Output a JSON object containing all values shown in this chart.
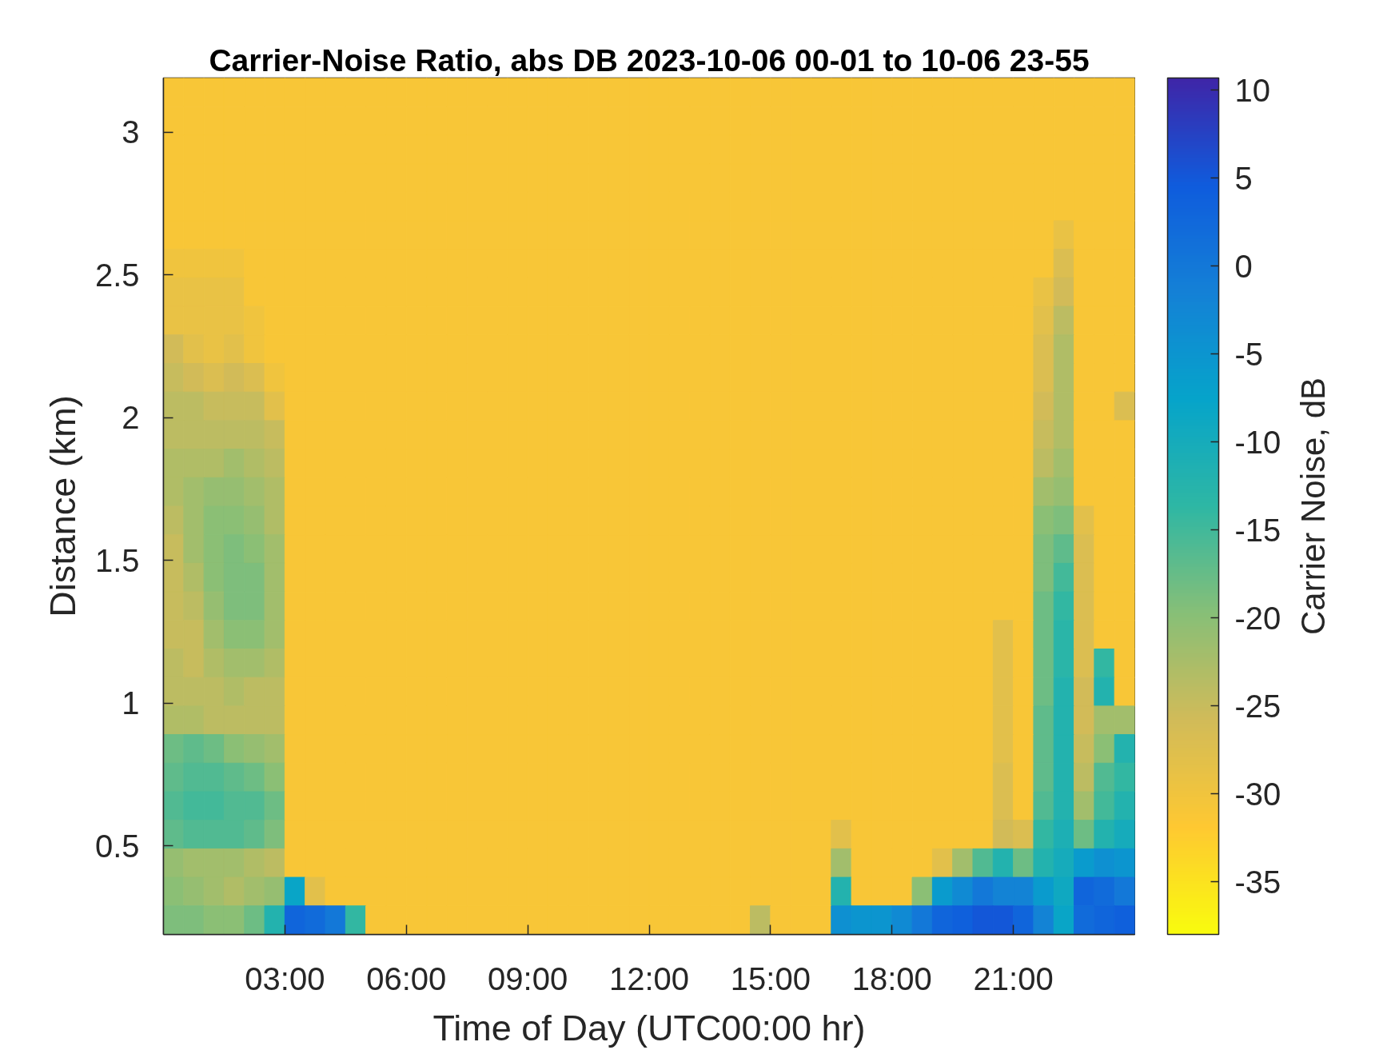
{
  "chart_data": {
    "type": "heatmap",
    "title": "Carrier-Noise Ratio, abs DB 2023-10-06 00-01 to 10-06 23-55",
    "xlabel": "Time of Day (UTC00:00 hr)",
    "ylabel": "Distance (km)",
    "clabel": "Carrier Noise, dB",
    "x": [
      0.25,
      0.75,
      1.25,
      1.75,
      2.25,
      2.75,
      3.25,
      3.75,
      4.25,
      4.75,
      5.25,
      5.75,
      6.25,
      6.75,
      7.25,
      7.75,
      8.25,
      8.75,
      9.25,
      9.75,
      10.25,
      10.75,
      11.25,
      11.75,
      12.25,
      12.75,
      13.25,
      13.75,
      14.25,
      14.75,
      15.25,
      15.75,
      16.25,
      16.75,
      17.25,
      17.75,
      18.25,
      18.75,
      19.25,
      19.75,
      20.25,
      20.75,
      21.25,
      21.75,
      22.25,
      22.75,
      23.25,
      23.75
    ],
    "xlim": [
      0,
      24
    ],
    "xticks": [
      {
        "value": 3,
        "label": "03:00"
      },
      {
        "value": 6,
        "label": "06:00"
      },
      {
        "value": 9,
        "label": "09:00"
      },
      {
        "value": 12,
        "label": "12:00"
      },
      {
        "value": 15,
        "label": "15:00"
      },
      {
        "value": 18,
        "label": "18:00"
      },
      {
        "value": 21,
        "label": "21:00"
      }
    ],
    "ylim": [
      0.19,
      3.19
    ],
    "yticks": [
      0.5,
      1,
      1.5,
      2,
      2.5,
      3
    ],
    "clim": [
      -38,
      10.7
    ],
    "cticks": [
      -35,
      -30,
      -25,
      -20,
      -15,
      -10,
      -5,
      0,
      5,
      10
    ],
    "cells": [
      [
        -31,
        -31,
        -31,
        -31,
        -31,
        -31,
        -31,
        -31,
        -31,
        -31,
        -31,
        -31,
        -31,
        -31,
        -31,
        -31,
        -31,
        -31,
        -31,
        -31,
        -31,
        -31,
        -31,
        -31,
        -31,
        -31,
        -31,
        -31,
        -31,
        -31,
        -31,
        -31,
        -31,
        -31,
        -31,
        -31,
        -31,
        -31,
        -31,
        -31,
        -31,
        -31,
        -31,
        -31,
        -31,
        -31,
        -31,
        -31
      ],
      [
        -31,
        -31,
        -31,
        -31,
        -31,
        -31,
        -31,
        -31,
        -31,
        -31,
        -31,
        -31,
        -31,
        -31,
        -31,
        -31,
        -31,
        -31,
        -31,
        -31,
        -31,
        -31,
        -31,
        -31,
        -31,
        -31,
        -31,
        -31,
        -31,
        -31,
        -31,
        -31,
        -31,
        -31,
        -31,
        -31,
        -31,
        -31,
        -31,
        -31,
        -31,
        -31,
        -31,
        -31,
        -31,
        -31,
        -31,
        -31
      ],
      [
        -31,
        -31,
        -31,
        -31,
        -31,
        -31,
        -31,
        -31,
        -31,
        -31,
        -31,
        -31,
        -31,
        -31,
        -31,
        -31,
        -31,
        -31,
        -31,
        -31,
        -31,
        -31,
        -31,
        -31,
        -31,
        -31,
        -31,
        -31,
        -31,
        -31,
        -31,
        -31,
        -31,
        -31,
        -31,
        -31,
        -31,
        -31,
        -31,
        -31,
        -31,
        -31,
        -31,
        -31,
        -31,
        -31,
        -31,
        -31
      ],
      [
        -31,
        -31,
        -31,
        -31,
        -31,
        -31,
        -31,
        -31,
        -31,
        -31,
        -31,
        -31,
        -31,
        -31,
        -31,
        -31,
        -31,
        -31,
        -31,
        -31,
        -31,
        -31,
        -31,
        -31,
        -31,
        -31,
        -31,
        -31,
        -31,
        -31,
        -31,
        -31,
        -31,
        -31,
        -31,
        -31,
        -31,
        -31,
        -31,
        -31,
        -31,
        -31,
        -31,
        -31,
        -31,
        -31,
        -31,
        -31
      ],
      [
        -31,
        -31,
        -31,
        -31,
        -31,
        -31,
        -31,
        -31,
        -31,
        -31,
        -31,
        -31,
        -31,
        -31,
        -31,
        -31,
        -31,
        -31,
        -31,
        -31,
        -31,
        -31,
        -31,
        -31,
        -31,
        -31,
        -31,
        -31,
        -31,
        -31,
        -31,
        -31,
        -31,
        -31,
        -31,
        -31,
        -31,
        -31,
        -31,
        -31,
        -31,
        -31,
        -31,
        -31,
        -31,
        -31,
        -31,
        -31
      ],
      [
        -31,
        -31,
        -31,
        -31,
        -31,
        -31,
        -31,
        -31,
        -31,
        -31,
        -31,
        -31,
        -31,
        -31,
        -31,
        -31,
        -31,
        -31,
        -31,
        -31,
        -31,
        -31,
        -31,
        -31,
        -31,
        -31,
        -31,
        -31,
        -31,
        -31,
        -31,
        -31,
        -31,
        -31,
        -31,
        -31,
        -31,
        -31,
        -31,
        -31,
        -31,
        -31,
        -31,
        -31,
        -29,
        -31,
        -31,
        -31
      ],
      [
        -30,
        -30,
        -30,
        -30,
        -31,
        -31,
        -31,
        -31,
        -31,
        -31,
        -31,
        -31,
        -31,
        -31,
        -31,
        -31,
        -31,
        -31,
        -31,
        -31,
        -31,
        -31,
        -31,
        -31,
        -31,
        -31,
        -31,
        -31,
        -31,
        -31,
        -31,
        -31,
        -31,
        -31,
        -31,
        -31,
        -31,
        -31,
        -31,
        -31,
        -31,
        -31,
        -31,
        -31,
        -27,
        -31,
        -31,
        -31
      ],
      [
        -29,
        -29,
        -29,
        -29,
        -31,
        -31,
        -31,
        -31,
        -31,
        -31,
        -31,
        -31,
        -31,
        -31,
        -31,
        -31,
        -31,
        -31,
        -31,
        -31,
        -31,
        -31,
        -31,
        -31,
        -31,
        -31,
        -31,
        -31,
        -31,
        -31,
        -31,
        -31,
        -31,
        -31,
        -31,
        -31,
        -31,
        -31,
        -31,
        -31,
        -31,
        -31,
        -31,
        -29,
        -26,
        -31,
        -31,
        -31
      ],
      [
        -29,
        -29,
        -29,
        -29,
        -30,
        -31,
        -31,
        -31,
        -31,
        -31,
        -31,
        -31,
        -31,
        -31,
        -31,
        -31,
        -31,
        -31,
        -31,
        -31,
        -31,
        -31,
        -31,
        -31,
        -31,
        -31,
        -31,
        -31,
        -31,
        -31,
        -31,
        -31,
        -31,
        -31,
        -31,
        -31,
        -31,
        -31,
        -31,
        -31,
        -31,
        -31,
        -31,
        -28,
        -24,
        -31,
        -31,
        -31
      ],
      [
        -26,
        -28,
        -29,
        -28,
        -30,
        -31,
        -31,
        -31,
        -31,
        -31,
        -31,
        -31,
        -31,
        -31,
        -31,
        -31,
        -31,
        -31,
        -31,
        -31,
        -31,
        -31,
        -31,
        -31,
        -31,
        -31,
        -31,
        -31,
        -31,
        -31,
        -31,
        -31,
        -31,
        -31,
        -31,
        -31,
        -31,
        -31,
        -31,
        -31,
        -31,
        -31,
        -31,
        -27,
        -23,
        -31,
        -31,
        -31
      ],
      [
        -25,
        -26,
        -27,
        -26,
        -27,
        -30,
        -31,
        -31,
        -31,
        -31,
        -31,
        -31,
        -31,
        -31,
        -31,
        -31,
        -31,
        -31,
        -31,
        -31,
        -31,
        -31,
        -31,
        -31,
        -31,
        -31,
        -31,
        -31,
        -31,
        -31,
        -31,
        -31,
        -31,
        -31,
        -31,
        -31,
        -31,
        -31,
        -31,
        -31,
        -31,
        -31,
        -31,
        -27,
        -23,
        -31,
        -31,
        -31
      ],
      [
        -24,
        -24,
        -25,
        -25,
        -25,
        -28,
        -31,
        -31,
        -31,
        -31,
        -31,
        -31,
        -31,
        -31,
        -31,
        -31,
        -31,
        -31,
        -31,
        -31,
        -31,
        -31,
        -31,
        -31,
        -31,
        -31,
        -31,
        -31,
        -31,
        -31,
        -31,
        -31,
        -31,
        -31,
        -31,
        -31,
        -31,
        -31,
        -31,
        -31,
        -31,
        -31,
        -31,
        -26,
        -23,
        -31,
        -31,
        -27
      ],
      [
        -24,
        -24,
        -24,
        -24,
        -24,
        -25,
        -31,
        -31,
        -31,
        -31,
        -31,
        -31,
        -31,
        -31,
        -31,
        -31,
        -31,
        -31,
        -31,
        -31,
        -31,
        -31,
        -31,
        -31,
        -31,
        -31,
        -31,
        -31,
        -31,
        -31,
        -31,
        -31,
        -31,
        -31,
        -31,
        -31,
        -31,
        -31,
        -31,
        -31,
        -31,
        -31,
        -31,
        -25,
        -23,
        -31,
        -31,
        -31
      ],
      [
        -23,
        -23,
        -23,
        -22,
        -23,
        -24,
        -31,
        -31,
        -31,
        -31,
        -31,
        -31,
        -31,
        -31,
        -31,
        -31,
        -31,
        -31,
        -31,
        -31,
        -31,
        -31,
        -31,
        -31,
        -31,
        -31,
        -31,
        -31,
        -31,
        -31,
        -31,
        -31,
        -31,
        -31,
        -31,
        -31,
        -31,
        -31,
        -31,
        -31,
        -31,
        -31,
        -31,
        -24,
        -22,
        -31,
        -31,
        -31
      ],
      [
        -23,
        -22,
        -21,
        -21,
        -22,
        -23,
        -31,
        -31,
        -31,
        -31,
        -31,
        -31,
        -31,
        -31,
        -31,
        -31,
        -31,
        -31,
        -31,
        -31,
        -31,
        -31,
        -31,
        -31,
        -31,
        -31,
        -31,
        -31,
        -31,
        -31,
        -31,
        -31,
        -31,
        -31,
        -31,
        -31,
        -31,
        -31,
        -31,
        -31,
        -31,
        -31,
        -31,
        -22,
        -21,
        -31,
        -31,
        -31
      ],
      [
        -24,
        -22,
        -20,
        -20,
        -21,
        -23,
        -31,
        -31,
        -31,
        -31,
        -31,
        -31,
        -31,
        -31,
        -31,
        -31,
        -31,
        -31,
        -31,
        -31,
        -31,
        -31,
        -31,
        -31,
        -31,
        -31,
        -31,
        -31,
        -31,
        -31,
        -31,
        -31,
        -31,
        -31,
        -31,
        -31,
        -31,
        -31,
        -31,
        -31,
        -31,
        -31,
        -31,
        -20,
        -19,
        -28,
        -31,
        -31
      ],
      [
        -25,
        -22,
        -20,
        -19,
        -20,
        -22,
        -31,
        -31,
        -31,
        -31,
        -31,
        -31,
        -31,
        -31,
        -31,
        -31,
        -31,
        -31,
        -31,
        -31,
        -31,
        -31,
        -31,
        -31,
        -31,
        -31,
        -31,
        -31,
        -31,
        -31,
        -31,
        -31,
        -31,
        -31,
        -31,
        -31,
        -31,
        -31,
        -31,
        -31,
        -31,
        -31,
        -31,
        -19,
        -17,
        -27,
        -31,
        -31
      ],
      [
        -25,
        -23,
        -20,
        -19,
        -19,
        -22,
        -31,
        -31,
        -31,
        -31,
        -31,
        -31,
        -31,
        -31,
        -31,
        -31,
        -31,
        -31,
        -31,
        -31,
        -31,
        -31,
        -31,
        -31,
        -31,
        -31,
        -31,
        -31,
        -31,
        -31,
        -31,
        -31,
        -31,
        -31,
        -31,
        -31,
        -31,
        -31,
        -31,
        -31,
        -31,
        -31,
        -31,
        -19,
        -15,
        -27,
        -31,
        -31
      ],
      [
        -25,
        -24,
        -21,
        -19,
        -19,
        -22,
        -31,
        -31,
        -31,
        -31,
        -31,
        -31,
        -31,
        -31,
        -31,
        -31,
        -31,
        -31,
        -31,
        -31,
        -31,
        -31,
        -31,
        -31,
        -31,
        -31,
        -31,
        -31,
        -31,
        -31,
        -31,
        -31,
        -31,
        -31,
        -31,
        -31,
        -31,
        -31,
        -31,
        -31,
        -31,
        -31,
        -31,
        -18,
        -14,
        -27,
        -31,
        -31
      ],
      [
        -25,
        -25,
        -22,
        -20,
        -20,
        -22,
        -31,
        -31,
        -31,
        -31,
        -31,
        -31,
        -31,
        -31,
        -31,
        -31,
        -31,
        -31,
        -31,
        -31,
        -31,
        -31,
        -31,
        -31,
        -31,
        -31,
        -31,
        -31,
        -31,
        -31,
        -31,
        -31,
        -31,
        -31,
        -31,
        -31,
        -31,
        -31,
        -31,
        -31,
        -31,
        -28,
        -31,
        -18,
        -13,
        -27,
        -31,
        -31
      ],
      [
        -24,
        -25,
        -23,
        -22,
        -22,
        -23,
        -31,
        -31,
        -31,
        -31,
        -31,
        -31,
        -31,
        -31,
        -31,
        -31,
        -31,
        -31,
        -31,
        -31,
        -31,
        -31,
        -31,
        -31,
        -31,
        -31,
        -31,
        -31,
        -31,
        -31,
        -31,
        -31,
        -31,
        -31,
        -31,
        -31,
        -31,
        -31,
        -31,
        -31,
        -31,
        -28,
        -31,
        -18,
        -13,
        -27,
        -14,
        -31
      ],
      [
        -24,
        -24,
        -24,
        -23,
        -24,
        -24,
        -31,
        -31,
        -31,
        -31,
        -31,
        -31,
        -31,
        -31,
        -31,
        -31,
        -31,
        -31,
        -31,
        -31,
        -31,
        -31,
        -31,
        -31,
        -31,
        -31,
        -31,
        -31,
        -31,
        -31,
        -31,
        -31,
        -31,
        -31,
        -31,
        -31,
        -31,
        -31,
        -31,
        -31,
        -31,
        -28,
        -31,
        -18,
        -12,
        -26,
        -12,
        -31
      ],
      [
        -23,
        -23,
        -24,
        -24,
        -24,
        -24,
        -31,
        -31,
        -31,
        -31,
        -31,
        -31,
        -31,
        -31,
        -31,
        -31,
        -31,
        -31,
        -31,
        -31,
        -31,
        -31,
        -31,
        -31,
        -31,
        -31,
        -31,
        -31,
        -31,
        -31,
        -31,
        -31,
        -31,
        -31,
        -31,
        -31,
        -31,
        -31,
        -31,
        -31,
        -31,
        -28,
        -31,
        -17,
        -12,
        -26,
        -22,
        -22
      ],
      [
        -18,
        -17,
        -18,
        -20,
        -21,
        -22,
        -31,
        -31,
        -31,
        -31,
        -31,
        -31,
        -31,
        -31,
        -31,
        -31,
        -31,
        -31,
        -31,
        -31,
        -31,
        -31,
        -31,
        -31,
        -31,
        -31,
        -31,
        -31,
        -31,
        -31,
        -31,
        -31,
        -31,
        -31,
        -31,
        -31,
        -31,
        -31,
        -31,
        -31,
        -31,
        -28,
        -31,
        -17,
        -12,
        -25,
        -20,
        -12
      ],
      [
        -17,
        -16,
        -16,
        -17,
        -18,
        -20,
        -31,
        -31,
        -31,
        -31,
        -31,
        -31,
        -31,
        -31,
        -31,
        -31,
        -31,
        -31,
        -31,
        -31,
        -31,
        -31,
        -31,
        -31,
        -31,
        -31,
        -31,
        -31,
        -31,
        -31,
        -31,
        -31,
        -31,
        -31,
        -31,
        -31,
        -31,
        -31,
        -31,
        -31,
        -31,
        -27,
        -31,
        -17,
        -12,
        -24,
        -16,
        -14
      ],
      [
        -16,
        -15,
        -15,
        -16,
        -16,
        -18,
        -31,
        -31,
        -31,
        -31,
        -31,
        -31,
        -31,
        -31,
        -31,
        -31,
        -31,
        -31,
        -31,
        -31,
        -31,
        -31,
        -31,
        -31,
        -31,
        -31,
        -31,
        -31,
        -31,
        -31,
        -31,
        -31,
        -31,
        -31,
        -31,
        -31,
        -31,
        -31,
        -31,
        -31,
        -31,
        -27,
        -31,
        -16,
        -12,
        -22,
        -15,
        -12
      ],
      [
        -17,
        -16,
        -16,
        -16,
        -17,
        -19,
        -31,
        -31,
        -31,
        -31,
        -31,
        -31,
        -31,
        -31,
        -31,
        -31,
        -31,
        -31,
        -31,
        -31,
        -31,
        -31,
        -31,
        -31,
        -31,
        -31,
        -31,
        -31,
        -31,
        -31,
        -31,
        -31,
        -31,
        -28,
        -31,
        -31,
        -31,
        -31,
        -31,
        -31,
        -31,
        -26,
        -27,
        -14,
        -11,
        -18,
        -12,
        -10
      ],
      [
        -21,
        -22,
        -22,
        -22,
        -23,
        -24,
        -31,
        -31,
        -31,
        -31,
        -31,
        -31,
        -31,
        -31,
        -31,
        -31,
        -31,
        -31,
        -31,
        -31,
        -31,
        -31,
        -31,
        -31,
        -31,
        -31,
        -31,
        -31,
        -31,
        -31,
        -31,
        -31,
        -31,
        -22,
        -31,
        -31,
        -31,
        -31,
        -28,
        -22,
        -16,
        -12,
        -18,
        -12,
        -10,
        -6,
        -4,
        -5
      ],
      [
        -20,
        -21,
        -22,
        -23,
        -22,
        -21,
        -8,
        -28,
        -31,
        -31,
        -31,
        -31,
        -31,
        -31,
        -31,
        -31,
        -31,
        -31,
        -31,
        -31,
        -31,
        -31,
        -31,
        -31,
        -31,
        -31,
        -31,
        -31,
        -31,
        -31,
        -31,
        -31,
        -31,
        -12,
        -31,
        -31,
        -31,
        -20,
        -6,
        -3,
        0,
        -2,
        -2,
        -6,
        -9,
        3,
        2,
        0
      ],
      [
        -19,
        -19,
        -20,
        -20,
        -18,
        -12,
        3,
        2,
        0,
        -14,
        -31,
        -31,
        -31,
        -31,
        -31,
        -31,
        -31,
        -31,
        -31,
        -31,
        -31,
        -31,
        -31,
        -31,
        -31,
        -31,
        -31,
        -31,
        -31,
        -24,
        -31,
        -31,
        -31,
        -4,
        -5,
        -5,
        -3,
        0,
        3,
        4,
        5,
        5,
        3,
        -2,
        -8,
        2,
        3,
        4
      ]
    ]
  }
}
